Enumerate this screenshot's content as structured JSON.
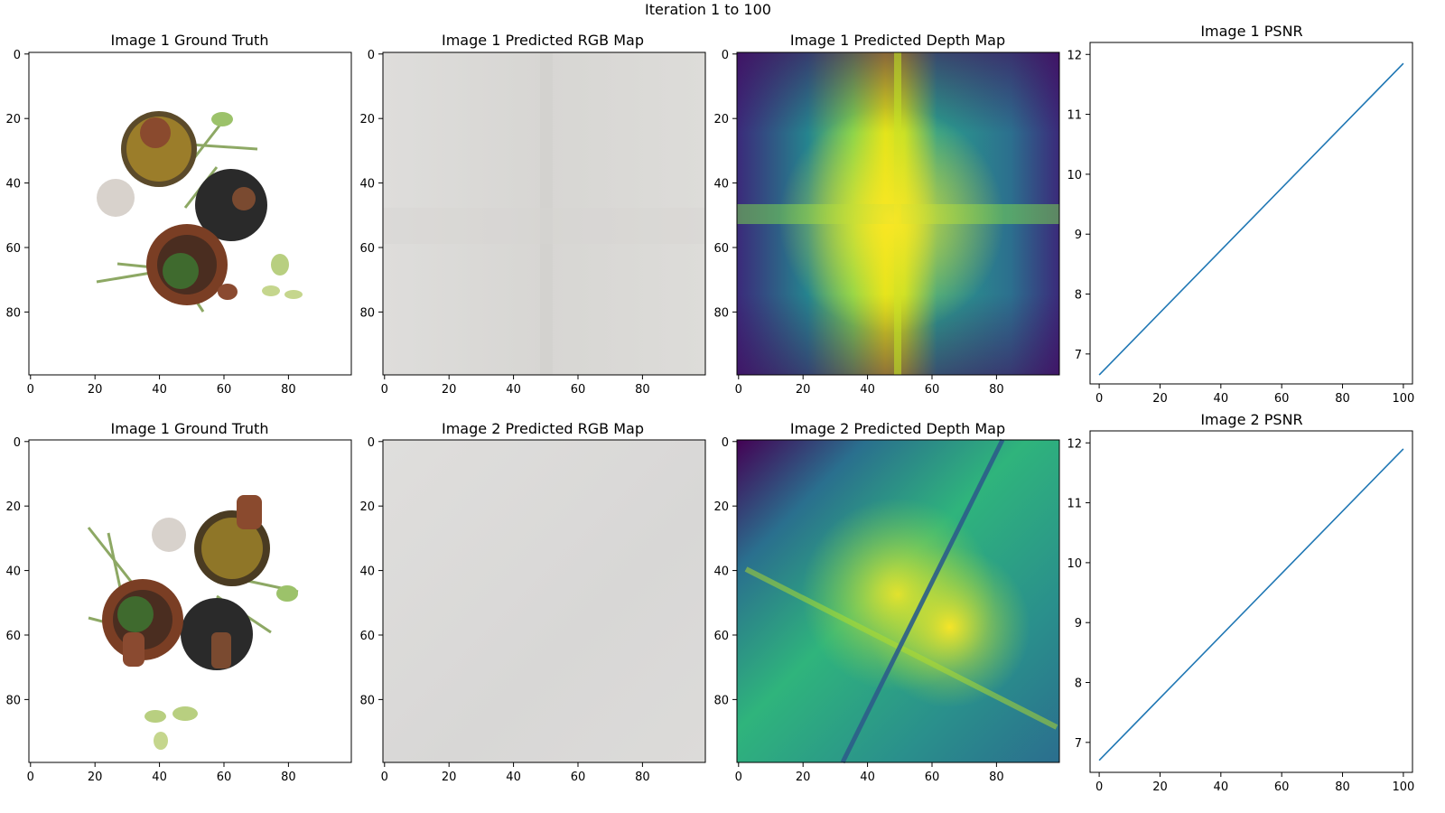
{
  "figure": {
    "suptitle": "Iteration 1 to 100"
  },
  "image_ticks": {
    "y": [
      "0",
      "20",
      "40",
      "60",
      "80"
    ],
    "x": [
      "0",
      "20",
      "40",
      "60",
      "80"
    ]
  },
  "panels": {
    "r1_gt": {
      "title": "Image 1 Ground Truth"
    },
    "r1_rgb": {
      "title": "Image 1 Predicted RGB Map"
    },
    "r1_depth": {
      "title": "Image 1 Predicted Depth Map"
    },
    "r1_psnr": {
      "title": "Image 1 PSNR"
    },
    "r2_gt": {
      "title": "Image 1 Ground Truth"
    },
    "r2_rgb": {
      "title": "Image 2 Predicted RGB Map"
    },
    "r2_depth": {
      "title": "Image 2 Predicted Depth Map"
    },
    "r2_psnr": {
      "title": "Image 2 PSNR"
    }
  },
  "colors": {
    "line": "#1f77b4",
    "rgb_map": "#dcdcd9",
    "depth_low": "#440154",
    "depth_mid": "#21918c",
    "depth_high": "#fde725"
  },
  "chart_data": [
    {
      "type": "line",
      "title": "Image 1 PSNR",
      "x": [
        0,
        100
      ],
      "series": [
        {
          "values": [
            6.65,
            11.85
          ]
        }
      ],
      "xlim": [
        -3,
        103
      ],
      "ylim": [
        6.5,
        12.2
      ],
      "xticks": [
        0,
        20,
        40,
        60,
        80,
        100
      ],
      "yticks": [
        7,
        8,
        9,
        10,
        11,
        12
      ],
      "xlabel": "",
      "ylabel": "",
      "grid": false
    },
    {
      "type": "line",
      "title": "Image 2 PSNR",
      "x": [
        0,
        100
      ],
      "series": [
        {
          "values": [
            6.7,
            11.9
          ]
        }
      ],
      "xlim": [
        -3,
        103
      ],
      "ylim": [
        6.5,
        12.2
      ],
      "xticks": [
        0,
        20,
        40,
        60,
        80,
        100
      ],
      "yticks": [
        7,
        8,
        9,
        10,
        11,
        12
      ],
      "xlabel": "",
      "ylabel": "",
      "grid": false
    }
  ]
}
